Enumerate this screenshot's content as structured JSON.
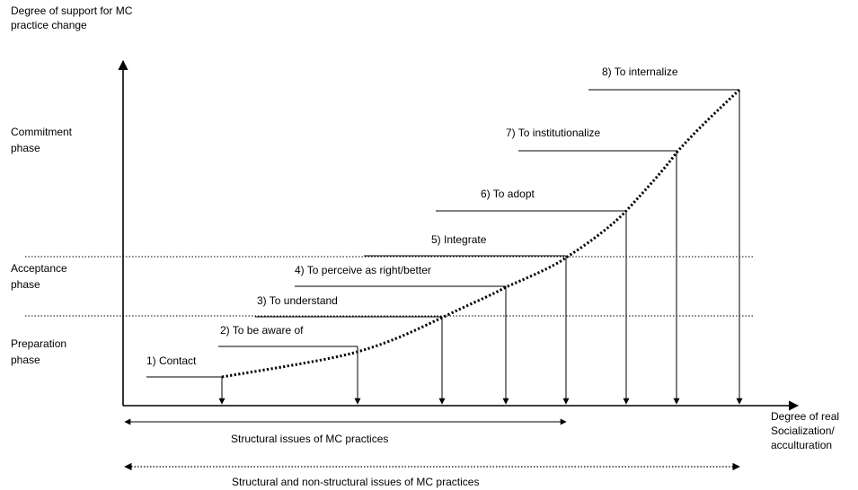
{
  "y_axis_label": [
    "Degree of support for MC",
    "practice change"
  ],
  "x_axis_label": [
    "Degree of real",
    "Socialization/",
    "acculturation"
  ],
  "phases": [
    {
      "id": "commitment",
      "lines": [
        "Commitment",
        "phase"
      ]
    },
    {
      "id": "acceptance",
      "lines": [
        "Acceptance",
        "phase"
      ]
    },
    {
      "id": "preparation",
      "lines": [
        "Preparation",
        "phase"
      ]
    }
  ],
  "steps": [
    {
      "label": "1) Contact"
    },
    {
      "label": "2) To be aware of"
    },
    {
      "label": "3) To understand"
    },
    {
      "label": "4) To perceive as right/better"
    },
    {
      "label": "5) Integrate"
    },
    {
      "label": "6) To adopt"
    },
    {
      "label": "7) To institutionalize"
    },
    {
      "label": "8) To internalize"
    }
  ],
  "ranges": [
    {
      "id": "structural",
      "label": "Structural issues of MC practices",
      "style": "solid"
    },
    {
      "id": "structural-and-non",
      "label": "Structural and non-structural issues of MC practices",
      "style": "dotted"
    }
  ]
}
